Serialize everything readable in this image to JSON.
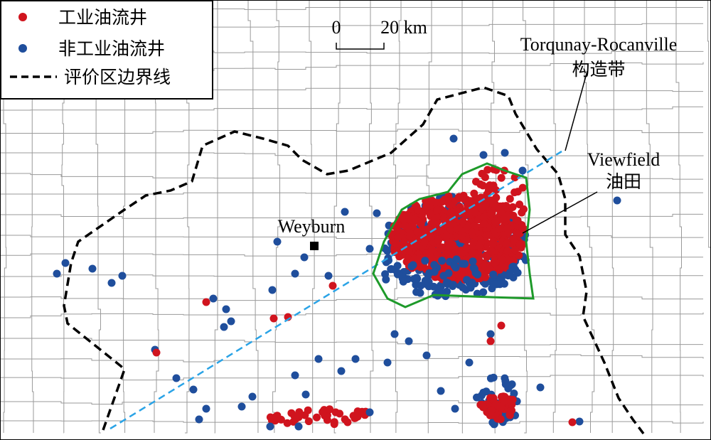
{
  "legend": {
    "items": [
      {
        "label": "工业油流井"
      },
      {
        "label": "非工业油流井"
      },
      {
        "label": "评价区边界线"
      }
    ]
  },
  "scale_bar": {
    "start": "0",
    "end": "20 km"
  },
  "annotations": [
    {
      "text": "Torqunay-Rocanville"
    },
    {
      "text": "构造带"
    },
    {
      "text": "Viewfield"
    },
    {
      "text": "油田"
    },
    {
      "text": "Weyburn"
    }
  ]
}
